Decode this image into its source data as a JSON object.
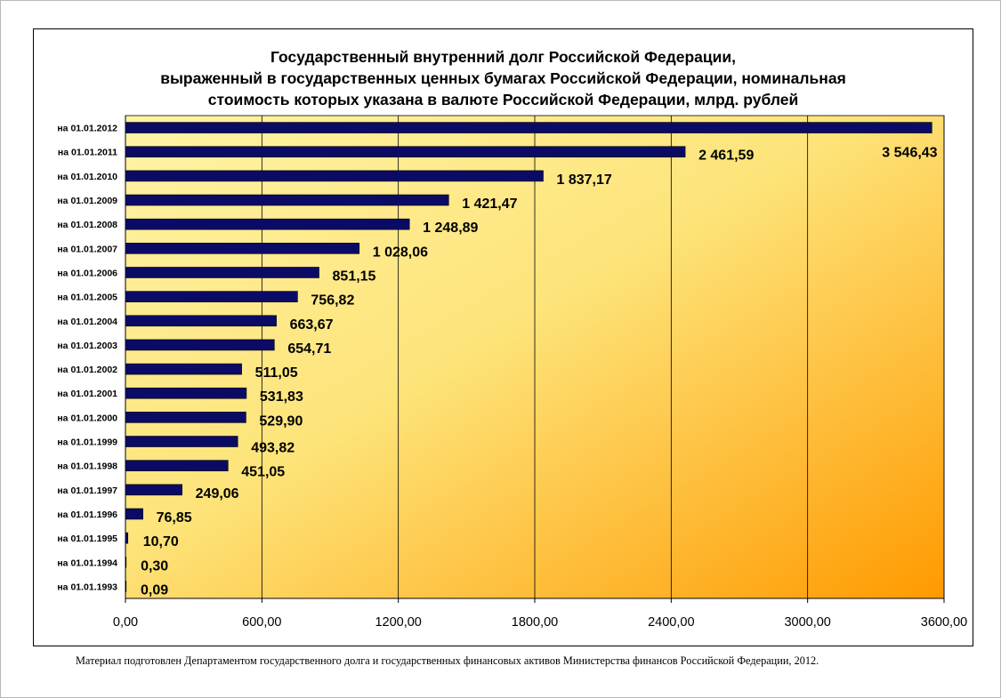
{
  "footnote": "Материал подготовлен Департаментом государственного долга и государственных финансовых активов Министерства финансов Российской Федерации, 2012.",
  "colors": {
    "bar_fill": "#0b0b66",
    "plot_gradient_start": "#fff3a6",
    "plot_gradient_mid": "#fde47a",
    "plot_gradient_end": "#ff9a00",
    "gridline": "#000000"
  },
  "chart_data": {
    "type": "bar",
    "orientation": "horizontal",
    "title_lines": [
      "Государственный внутренний долг Российской Федерации,",
      "выраженный в государственных ценных бумагах Российской Федерации, номинальная",
      "стоимость которых указана в валюте Российской Федерации, млрд. рублей"
    ],
    "xlabel": "",
    "ylabel": "",
    "xlim": [
      0,
      3600
    ],
    "xticks": [
      0,
      600,
      1200,
      1800,
      2400,
      3000,
      3600
    ],
    "xtick_labels": [
      "0,00",
      "600,00",
      "1200,00",
      "1800,00",
      "2400,00",
      "3000,00",
      "3600,00"
    ],
    "grid": "vertical",
    "categories": [
      "на 01.01.2012",
      "на 01.01.2011",
      "на 01.01.2010",
      "на 01.01.2009",
      "на 01.01.2008",
      "на 01.01.2007",
      "на 01.01.2006",
      "на 01.01.2005",
      "на 01.01.2004",
      "на 01.01.2003",
      "на 01.01.2002",
      "на 01.01.2001",
      "на 01.01.2000",
      "на 01.01.1999",
      "на 01.01.1998",
      "на 01.01.1997",
      "на 01.01.1996",
      "на 01.01.1995",
      "на 01.01.1994",
      "на 01.01.1993"
    ],
    "values": [
      3546.43,
      2461.59,
      1837.17,
      1421.47,
      1248.89,
      1028.06,
      851.15,
      756.82,
      663.67,
      654.71,
      511.05,
      531.83,
      529.9,
      493.82,
      451.05,
      249.06,
      76.85,
      10.7,
      0.3,
      0.09
    ],
    "data_labels": [
      "3 546,43",
      "2 461,59",
      "1 837,17",
      "1 421,47",
      "1 248,89",
      "1 028,06",
      "851,15",
      "756,82",
      "663,67",
      "654,71",
      "511,05",
      "531,83",
      "529,90",
      "493,82",
      "451,05",
      "249,06",
      "76,85",
      "10,70",
      "0,30",
      "0,09"
    ]
  }
}
